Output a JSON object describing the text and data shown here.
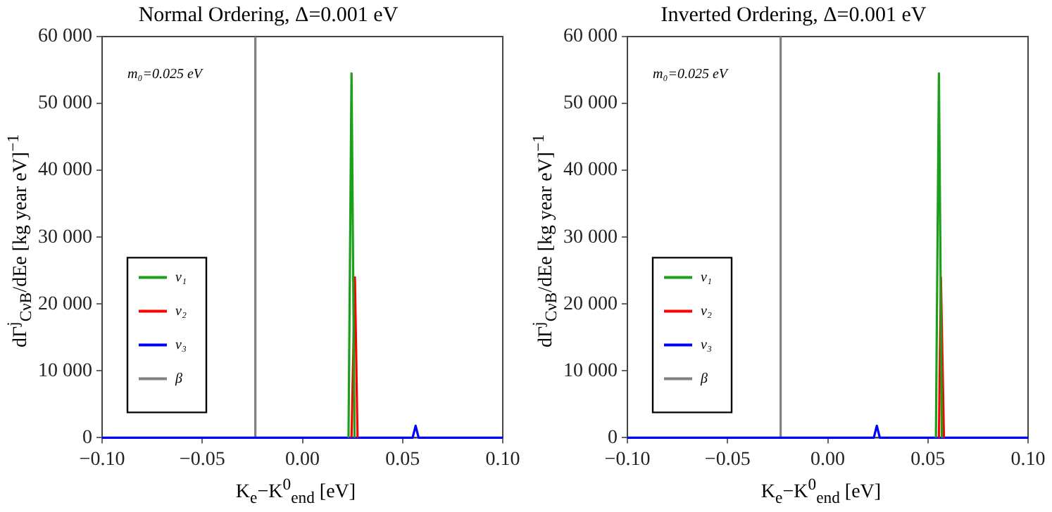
{
  "chart_data": [
    {
      "type": "line",
      "title": "Normal Ordering, Δ=0.001 eV",
      "xlabel": "K$_{e}$−K$^{0}$$_{end}$ [eV]",
      "ylabel": "dΓ$^{j}$$_{CνB}$/dEe [kg year eV]$^{−1}$",
      "annotations": [
        "m₀=0.025 eV"
      ],
      "legend": "bottom left",
      "marker": "none",
      "line_style": "solid",
      "xlim": [
        -0.1,
        0.1
      ],
      "xticks": [
        {
          "value": -0.1,
          "label": "−0.10"
        },
        {
          "value": -0.05,
          "label": "−0.05"
        },
        {
          "value": 0,
          "label": "0.00"
        },
        {
          "value": 0.05,
          "label": "0.05"
        },
        {
          "value": 0.1,
          "label": "0.10"
        }
      ],
      "ylim": [
        0,
        60000
      ],
      "yticks": [
        0,
        {
          "value": 10000,
          "label": "10 000"
        },
        {
          "value": 20000,
          "label": "20 000"
        },
        {
          "value": 30000,
          "label": "30 000"
        },
        {
          "value": 40000,
          "label": "40 000"
        },
        {
          "value": 50000,
          "label": "50 000"
        },
        {
          "value": 60000,
          "label": "60 000"
        }
      ],
      "series": [
        {
          "name": "ν₁",
          "color": "#1aa01a",
          "x": [
            0.023,
            0.0245,
            0.026
          ],
          "values": [
            0,
            54500,
            0
          ]
        },
        {
          "name": "ν₂",
          "color": "#ff0000",
          "x": [
            0.0245,
            0.0262,
            0.0275
          ],
          "values": [
            0,
            24000,
            0
          ]
        },
        {
          "name": "ν₃",
          "color": "#0000ff",
          "x": [
            -0.1,
            0.055,
            0.0565,
            0.058,
            0.1
          ],
          "values": [
            0,
            0,
            1800,
            0,
            0
          ]
        },
        {
          "name": "β",
          "color": "#808080",
          "x": [
            -0.0236,
            -0.0235
          ],
          "values": [
            0,
            60000
          ]
        }
      ]
    },
    {
      "type": "line",
      "title": "Inverted Ordering, Δ=0.001 eV",
      "xlabel": "K$_{e}$−K$^{0}$$_{end}$ [eV]",
      "ylabel": "dΓ$^{j}$$_{CνB}$/dEe [kg year eV]$^{−1}$",
      "annotations": [
        "m₀=0.025 eV"
      ],
      "legend": "bottom left",
      "marker": "none",
      "line_style": "solid",
      "xlim": [
        -0.1,
        0.1
      ],
      "xticks": [
        {
          "value": -0.1,
          "label": "−0.10"
        },
        {
          "value": -0.05,
          "label": "−0.05"
        },
        {
          "value": 0,
          "label": "0.00"
        },
        {
          "value": 0.05,
          "label": "0.05"
        },
        {
          "value": 0.1,
          "label": "0.10"
        }
      ],
      "ylim": [
        0,
        60000
      ],
      "yticks": [
        0,
        {
          "value": 10000,
          "label": "10 000"
        },
        {
          "value": 20000,
          "label": "20 000"
        },
        {
          "value": 30000,
          "label": "30 000"
        },
        {
          "value": 40000,
          "label": "40 000"
        },
        {
          "value": 50000,
          "label": "50 000"
        },
        {
          "value": 60000,
          "label": "60 000"
        }
      ],
      "series": [
        {
          "name": "ν₁",
          "color": "#1aa01a",
          "x": [
            0.054,
            0.0555,
            0.057
          ],
          "values": [
            0,
            54500,
            0
          ]
        },
        {
          "name": "ν₂",
          "color": "#ff0000",
          "x": [
            0.0555,
            0.0565,
            0.058
          ],
          "values": [
            0,
            24000,
            0
          ]
        },
        {
          "name": "ν₃",
          "color": "#0000ff",
          "x": [
            -0.1,
            0.023,
            0.0245,
            0.026,
            0.1
          ],
          "values": [
            0,
            0,
            1800,
            0,
            0
          ]
        },
        {
          "name": "β",
          "color": "#808080",
          "x": [
            -0.0236,
            -0.0235
          ],
          "values": [
            0,
            60000
          ]
        }
      ]
    }
  ]
}
